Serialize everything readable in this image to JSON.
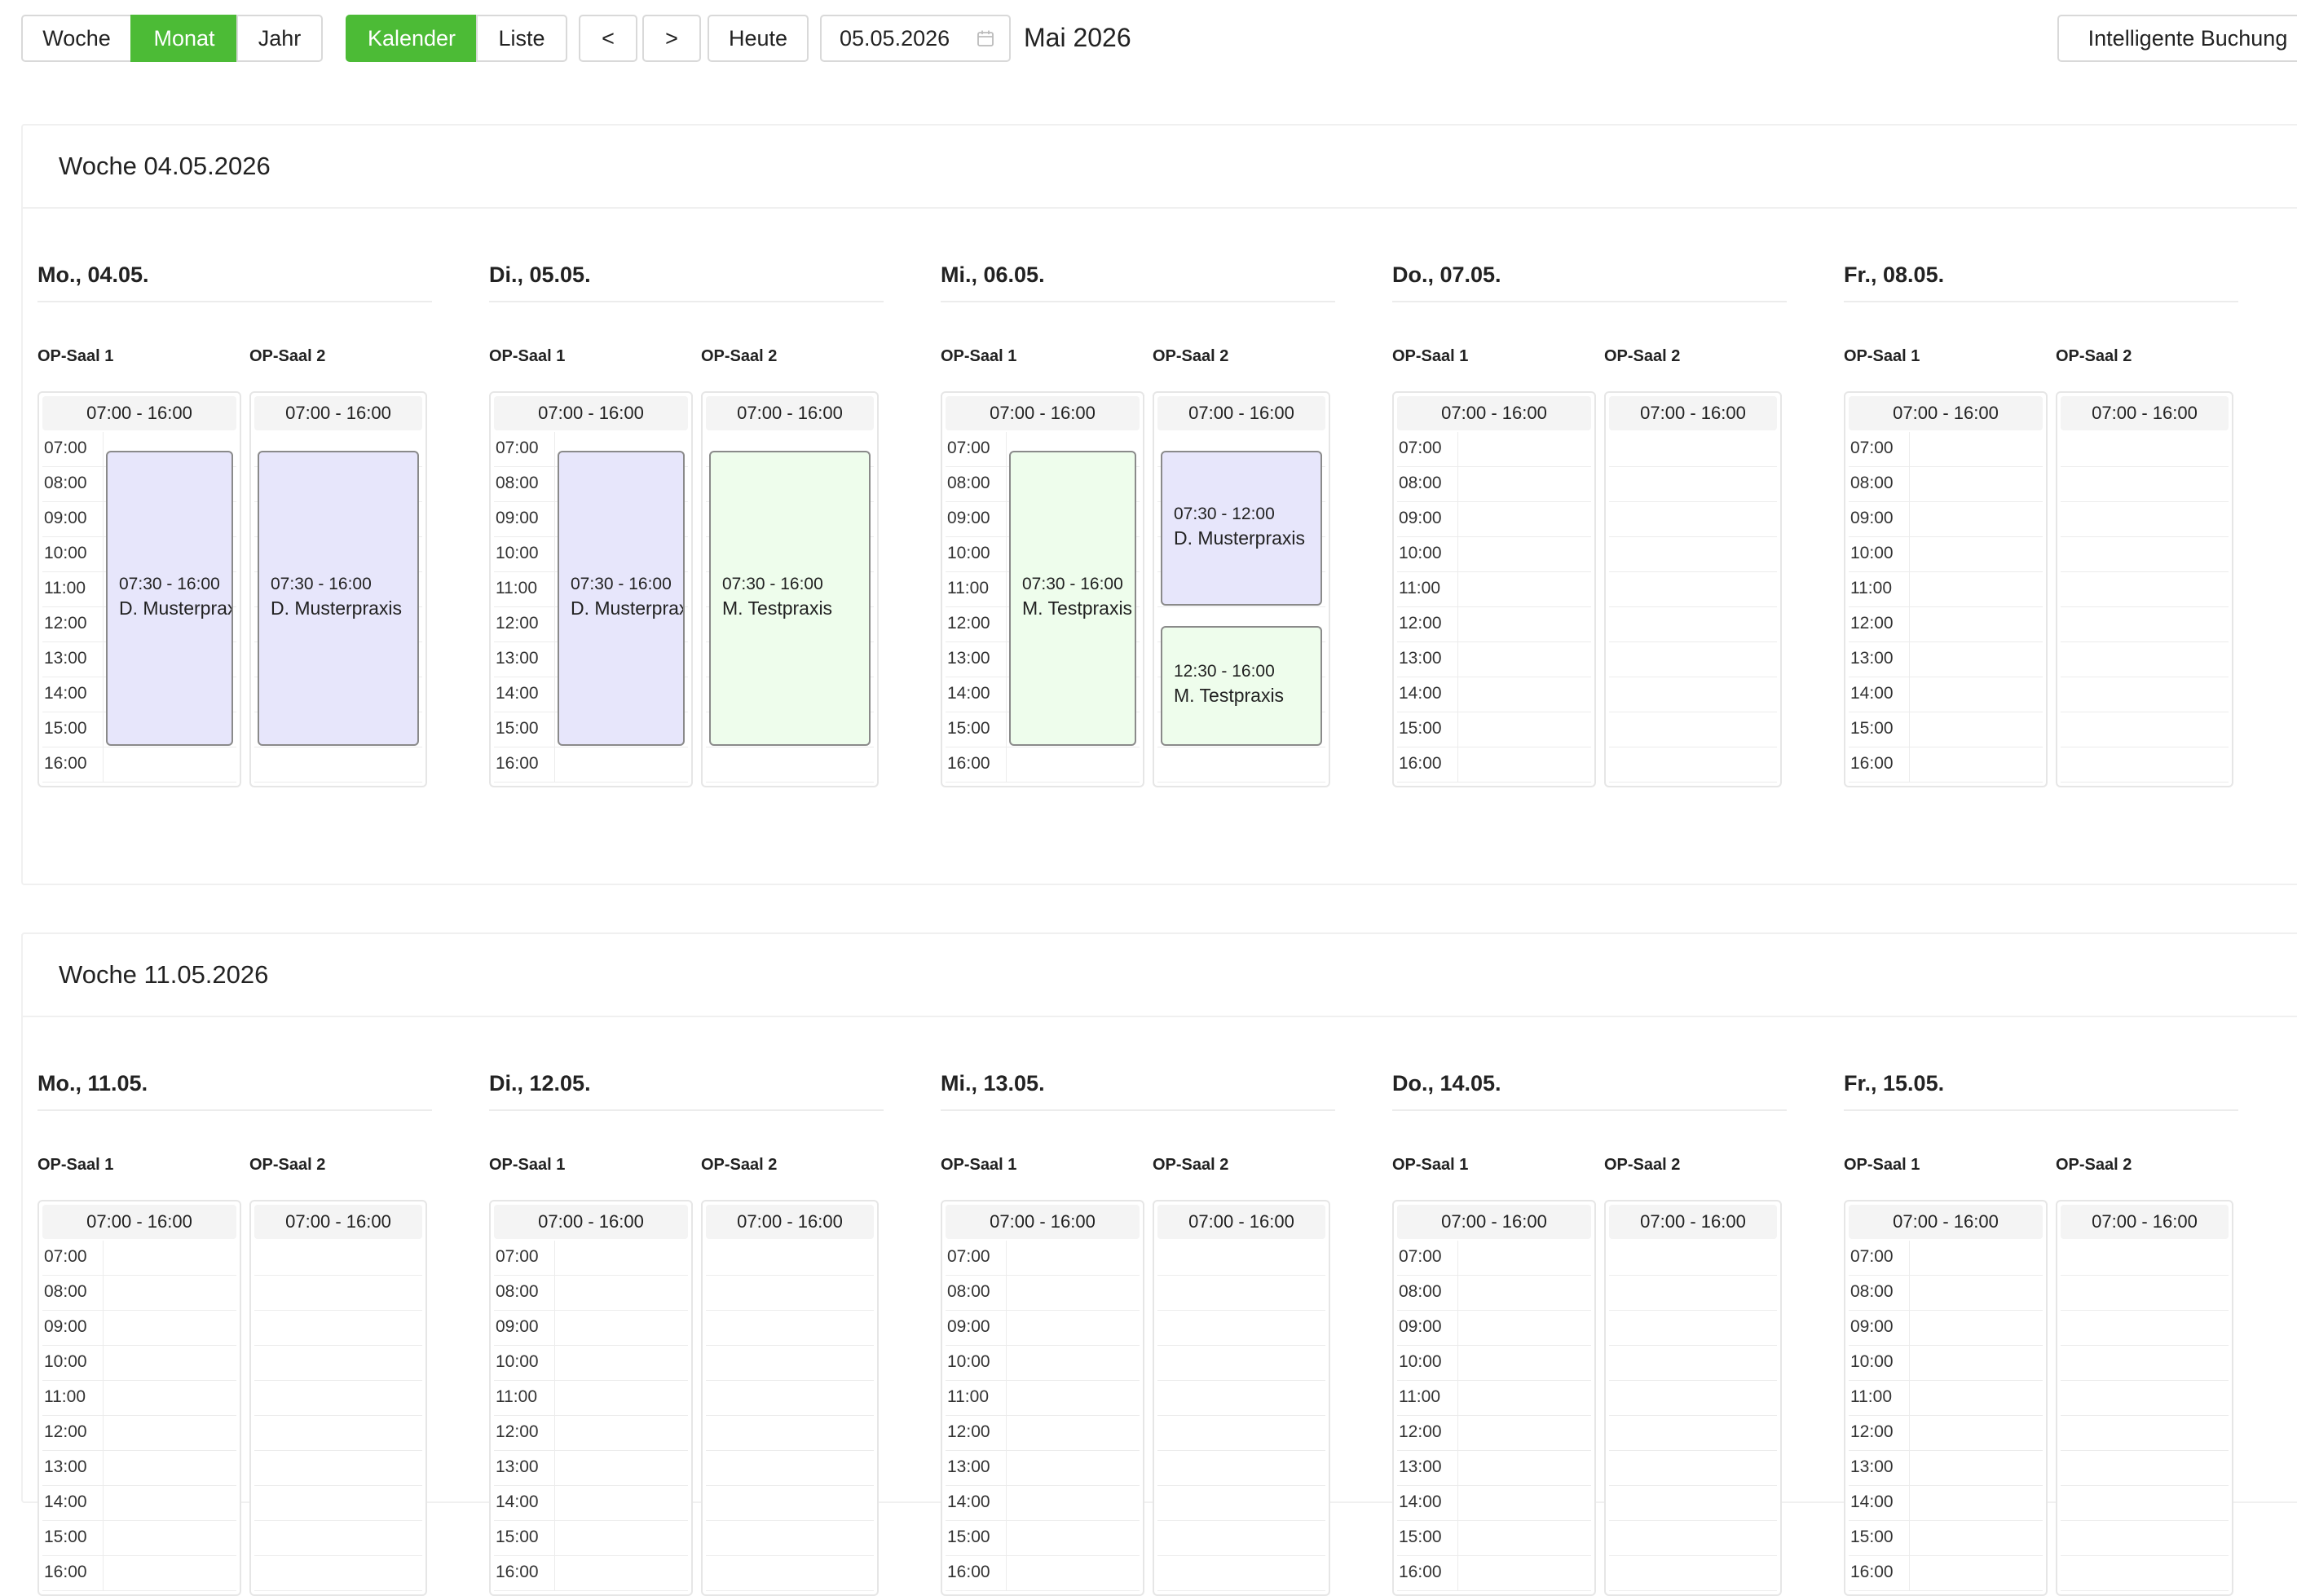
{
  "toolbar": {
    "view_modes": [
      {
        "label": "Woche",
        "active": false
      },
      {
        "label": "Monat",
        "active": true
      },
      {
        "label": "Jahr",
        "active": false
      }
    ],
    "display_modes": [
      {
        "label": "Kalender",
        "active": true
      },
      {
        "label": "Liste",
        "active": false
      }
    ],
    "prev_label": "<",
    "next_label": ">",
    "today_label": "Heute",
    "date_value": "05.05.2026",
    "month_title": "Mai 2026",
    "smart_booking_label": "Intelligente Buchung"
  },
  "colors": {
    "accent": "#4cbb36",
    "event_purple": "#e7e6fb",
    "event_green": "#eefdec"
  },
  "hours": [
    "07:00",
    "08:00",
    "09:00",
    "10:00",
    "11:00",
    "12:00",
    "13:00",
    "14:00",
    "15:00",
    "16:00"
  ],
  "weeks": [
    {
      "title": "Woche 04.05.2026",
      "days": [
        {
          "title": "Mo., 04.05.",
          "rooms": [
            {
              "name": "OP-Saal 1",
              "hours_label": "07:00 - 16:00",
              "events": [
                {
                  "time": "07:30 - 16:00",
                  "name": "D. Musterpraxis",
                  "color": "purple",
                  "start": 7.5,
                  "end": 16
                }
              ]
            },
            {
              "name": "OP-Saal 2",
              "hours_label": "07:00 - 16:00",
              "events": [
                {
                  "time": "07:30 - 16:00",
                  "name": "D. Musterpraxis",
                  "color": "purple",
                  "start": 7.5,
                  "end": 16
                }
              ]
            }
          ]
        },
        {
          "title": "Di., 05.05.",
          "rooms": [
            {
              "name": "OP-Saal 1",
              "hours_label": "07:00 - 16:00",
              "events": [
                {
                  "time": "07:30 - 16:00",
                  "name": "D. Musterpraxis",
                  "color": "purple",
                  "start": 7.5,
                  "end": 16
                }
              ]
            },
            {
              "name": "OP-Saal 2",
              "hours_label": "07:00 - 16:00",
              "events": [
                {
                  "time": "07:30 - 16:00",
                  "name": "M. Testpraxis",
                  "color": "green",
                  "start": 7.5,
                  "end": 16
                }
              ]
            }
          ]
        },
        {
          "title": "Mi., 06.05.",
          "rooms": [
            {
              "name": "OP-Saal 1",
              "hours_label": "07:00 - 16:00",
              "events": [
                {
                  "time": "07:30 - 16:00",
                  "name": "M. Testpraxis",
                  "color": "green",
                  "start": 7.5,
                  "end": 16
                }
              ]
            },
            {
              "name": "OP-Saal 2",
              "hours_label": "07:00 - 16:00",
              "events": [
                {
                  "time": "07:30 - 12:00",
                  "name": "D. Musterpraxis",
                  "color": "purple",
                  "start": 7.5,
                  "end": 12
                },
                {
                  "time": "12:30 - 16:00",
                  "name": "M. Testpraxis",
                  "color": "green",
                  "start": 12.5,
                  "end": 16
                }
              ]
            }
          ]
        },
        {
          "title": "Do., 07.05.",
          "rooms": [
            {
              "name": "OP-Saal 1",
              "hours_label": "07:00 - 16:00",
              "events": []
            },
            {
              "name": "OP-Saal 2",
              "hours_label": "07:00 - 16:00",
              "events": []
            }
          ]
        },
        {
          "title": "Fr., 08.05.",
          "rooms": [
            {
              "name": "OP-Saal 1",
              "hours_label": "07:00 - 16:00",
              "events": []
            },
            {
              "name": "OP-Saal 2",
              "hours_label": "07:00 - 16:00",
              "events": []
            }
          ]
        }
      ]
    },
    {
      "title": "Woche 11.05.2026",
      "days": [
        {
          "title": "Mo., 11.05.",
          "rooms": [
            {
              "name": "OP-Saal 1",
              "hours_label": "07:00 - 16:00",
              "events": []
            },
            {
              "name": "OP-Saal 2",
              "hours_label": "07:00 - 16:00",
              "events": []
            }
          ]
        },
        {
          "title": "Di., 12.05.",
          "rooms": [
            {
              "name": "OP-Saal 1",
              "hours_label": "07:00 - 16:00",
              "events": []
            },
            {
              "name": "OP-Saal 2",
              "hours_label": "07:00 - 16:00",
              "events": []
            }
          ]
        },
        {
          "title": "Mi., 13.05.",
          "rooms": [
            {
              "name": "OP-Saal 1",
              "hours_label": "07:00 - 16:00",
              "events": []
            },
            {
              "name": "OP-Saal 2",
              "hours_label": "07:00 - 16:00",
              "events": []
            }
          ]
        },
        {
          "title": "Do., 14.05.",
          "rooms": [
            {
              "name": "OP-Saal 1",
              "hours_label": "07:00 - 16:00",
              "events": []
            },
            {
              "name": "OP-Saal 2",
              "hours_label": "07:00 - 16:00",
              "events": []
            }
          ]
        },
        {
          "title": "Fr., 15.05.",
          "rooms": [
            {
              "name": "OP-Saal 1",
              "hours_label": "07:00 - 16:00",
              "events": []
            },
            {
              "name": "OP-Saal 2",
              "hours_label": "07:00 - 16:00",
              "events": []
            }
          ]
        }
      ]
    }
  ]
}
